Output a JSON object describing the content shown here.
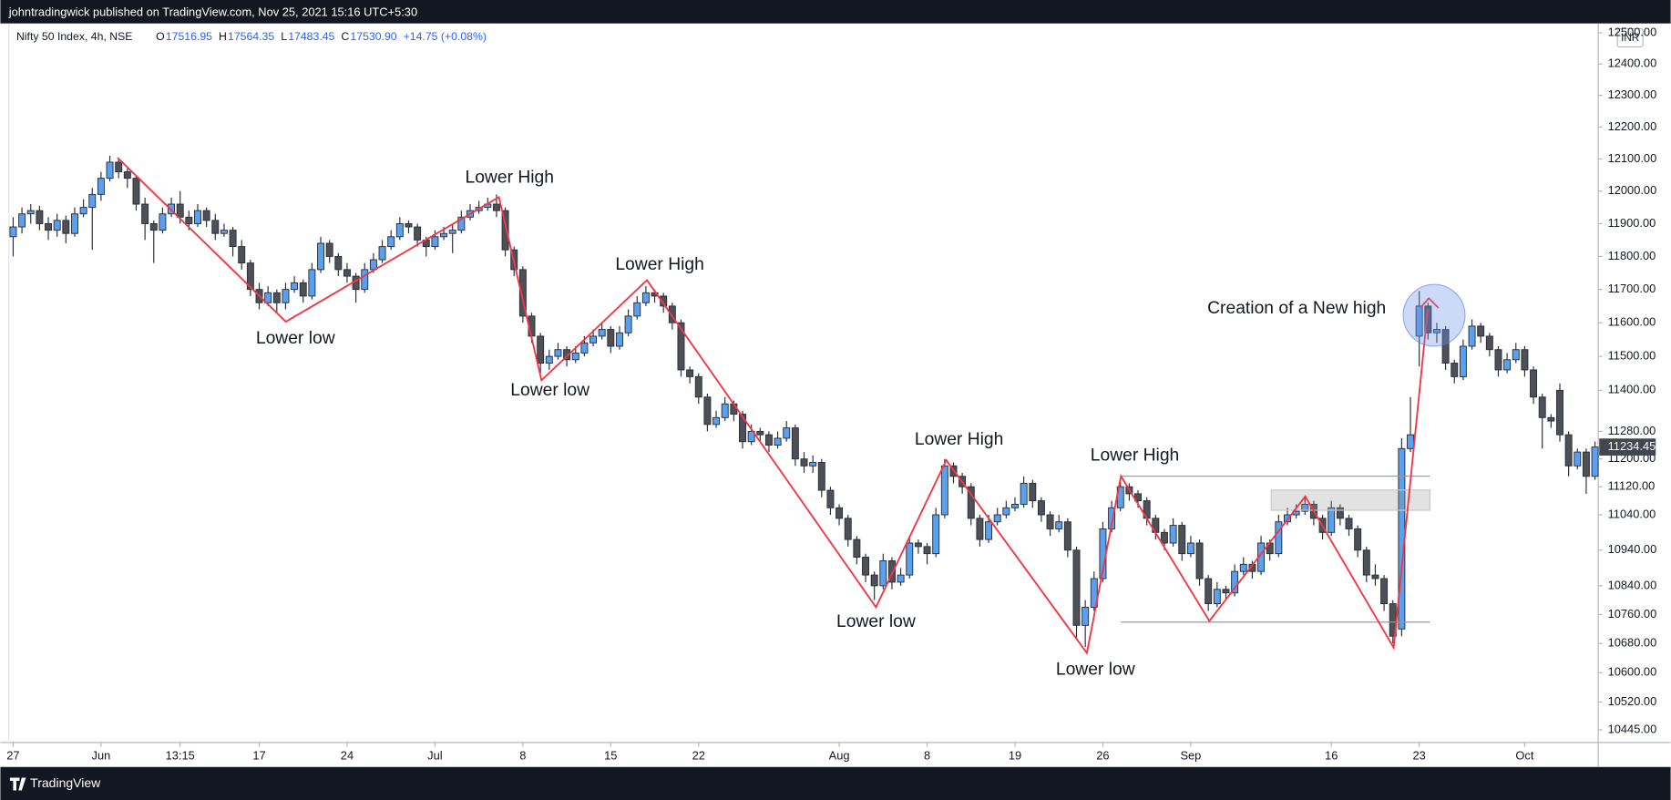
{
  "header": "johntradingwick published on TradingView.com, Nov 25, 2021 15:16 UTC+5:30",
  "legend": {
    "symbol": "Nifty 50 Index, 4h, NSE",
    "items": [
      {
        "key": "O",
        "value": "17516.95"
      },
      {
        "key": "H",
        "value": "17564.35"
      },
      {
        "key": "L",
        "value": "17483.45"
      },
      {
        "key": "C",
        "value": "17530.90"
      }
    ],
    "change": "+14.75 (+0.08%)"
  },
  "currency": "INR",
  "footer": "TradingView",
  "annotations": [
    "Lower High",
    "Lower low",
    "Lower High",
    "Lower low",
    "Lower High",
    "Lower low",
    "Lower High",
    "Lower low",
    "Creation of a New high"
  ],
  "chart_data": {
    "type": "candlestick",
    "log": true,
    "up_color": "#5aa0ee",
    "down_color": "#4e5058",
    "ylim": [
      10411,
      12530
    ],
    "yticks": [
      {
        "value": 12500,
        "label": "12500.00"
      },
      {
        "value": 12400,
        "label": "12400.00"
      },
      {
        "value": 12300,
        "label": "12300.00"
      },
      {
        "value": 12200,
        "label": "12200.00"
      },
      {
        "value": 12100,
        "label": "12100.00"
      },
      {
        "value": 12000,
        "label": "12000.00"
      },
      {
        "value": 11900,
        "label": "11900.00"
      },
      {
        "value": 11800,
        "label": "11800.00"
      },
      {
        "value": 11700,
        "label": "11700.00"
      },
      {
        "value": 11600,
        "label": "11600.00"
      },
      {
        "value": 11500,
        "label": "11500.00"
      },
      {
        "value": 11400,
        "label": "11400.00"
      },
      {
        "value": 11280,
        "label": "11280.00"
      },
      {
        "value": 11200,
        "label": "11200.00"
      },
      {
        "value": 11120,
        "label": "11120.00"
      },
      {
        "value": 11040,
        "label": "11040.00"
      },
      {
        "value": 10940,
        "label": "10940.00"
      },
      {
        "value": 10840,
        "label": "10840.00"
      },
      {
        "value": 10760,
        "label": "10760.00"
      },
      {
        "value": 10680,
        "label": "10680.00"
      },
      {
        "value": 10600,
        "label": "10600.00"
      },
      {
        "value": 10520,
        "label": "10520.00"
      },
      {
        "value": 10445,
        "label": "10445.00"
      }
    ],
    "categories": [
      "27",
      null,
      null,
      null,
      null,
      null,
      null,
      null,
      null,
      null,
      "Jun",
      null,
      null,
      null,
      null,
      null,
      null,
      null,
      null,
      "13:15",
      null,
      null,
      null,
      null,
      null,
      null,
      null,
      null,
      "17",
      null,
      null,
      null,
      null,
      null,
      null,
      null,
      null,
      null,
      "24",
      null,
      null,
      null,
      null,
      null,
      null,
      null,
      null,
      null,
      "Jul",
      null,
      null,
      null,
      null,
      null,
      null,
      null,
      null,
      null,
      "8",
      null,
      null,
      null,
      null,
      null,
      null,
      null,
      null,
      null,
      "15",
      null,
      null,
      null,
      null,
      null,
      null,
      null,
      null,
      null,
      "22",
      null,
      null,
      null,
      null,
      null,
      null,
      null,
      null,
      null,
      null,
      null,
      null,
      null,
      null,
      null,
      "Aug",
      null,
      null,
      null,
      null,
      null,
      null,
      null,
      null,
      null,
      "8",
      null,
      null,
      null,
      null,
      null,
      null,
      null,
      null,
      null,
      "19",
      null,
      null,
      null,
      null,
      null,
      null,
      null,
      null,
      null,
      "26",
      null,
      null,
      null,
      null,
      null,
      null,
      null,
      null,
      null,
      "Sep",
      null,
      null,
      null,
      null,
      null,
      null,
      null,
      null,
      null,
      null,
      null,
      null,
      null,
      null,
      null,
      "16",
      null,
      null,
      null,
      null,
      null,
      null,
      null,
      null,
      null,
      "23",
      null,
      null,
      null,
      null,
      null,
      null,
      null,
      null,
      null,
      null,
      null,
      "Oct",
      null,
      null,
      null,
      null,
      null,
      null,
      null,
      null
    ],
    "candles": [
      [
        11860,
        11920,
        11800,
        11890
      ],
      [
        11890,
        11950,
        11870,
        11930
      ],
      [
        11930,
        11960,
        11900,
        11940
      ],
      [
        11940,
        11955,
        11880,
        11900
      ],
      [
        11900,
        11920,
        11850,
        11880
      ],
      [
        11880,
        11930,
        11860,
        11910
      ],
      [
        11910,
        11925,
        11840,
        11870
      ],
      [
        11870,
        11950,
        11860,
        11930
      ],
      [
        11930,
        11975,
        11920,
        11950
      ],
      [
        11950,
        12010,
        11820,
        11990
      ],
      [
        11990,
        12060,
        11970,
        12040
      ],
      [
        12040,
        12110,
        12030,
        12090
      ],
      [
        12090,
        12100,
        12040,
        12060
      ],
      [
        12060,
        12070,
        12010,
        12040
      ],
      [
        12040,
        12050,
        11940,
        11960
      ],
      [
        11960,
        11980,
        11850,
        11900
      ],
      [
        11900,
        11910,
        11780,
        11880
      ],
      [
        11880,
        11950,
        11870,
        11930
      ],
      [
        11930,
        11980,
        11920,
        11960
      ],
      [
        11960,
        12000,
        11900,
        11920
      ],
      [
        11920,
        11940,
        11880,
        11900
      ],
      [
        11900,
        11960,
        11890,
        11940
      ],
      [
        11940,
        11950,
        11890,
        11910
      ],
      [
        11910,
        11930,
        11850,
        11870
      ],
      [
        11870,
        11900,
        11860,
        11880
      ],
      [
        11880,
        11890,
        11800,
        11830
      ],
      [
        11830,
        11850,
        11760,
        11780
      ],
      [
        11780,
        11790,
        11680,
        11700
      ],
      [
        11700,
        11720,
        11640,
        11660
      ],
      [
        11660,
        11710,
        11650,
        11690
      ],
      [
        11690,
        11700,
        11630,
        11660
      ],
      [
        11660,
        11720,
        11640,
        11700
      ],
      [
        11700,
        11740,
        11690,
        11720
      ],
      [
        11720,
        11730,
        11660,
        11680
      ],
      [
        11680,
        11780,
        11670,
        11760
      ],
      [
        11760,
        11860,
        11750,
        11840
      ],
      [
        11840,
        11850,
        11780,
        11800
      ],
      [
        11800,
        11810,
        11740,
        11760
      ],
      [
        11760,
        11780,
        11720,
        11740
      ],
      [
        11740,
        11750,
        11660,
        11700
      ],
      [
        11700,
        11780,
        11690,
        11760
      ],
      [
        11760,
        11810,
        11750,
        11790
      ],
      [
        11790,
        11850,
        11780,
        11830
      ],
      [
        11830,
        11880,
        11820,
        11860
      ],
      [
        11860,
        11920,
        11850,
        11900
      ],
      [
        11900,
        11910,
        11870,
        11890
      ],
      [
        11890,
        11900,
        11830,
        11850
      ],
      [
        11850,
        11860,
        11800,
        11830
      ],
      [
        11830,
        11880,
        11820,
        11860
      ],
      [
        11860,
        11890,
        11850,
        11870
      ],
      [
        11870,
        11900,
        11810,
        11880
      ],
      [
        11880,
        11940,
        11870,
        11920
      ],
      [
        11920,
        11960,
        11910,
        11940
      ],
      [
        11940,
        11970,
        11930,
        11950
      ],
      [
        11950,
        11980,
        11940,
        11960
      ],
      [
        11960,
        11990,
        11920,
        11940
      ],
      [
        11940,
        11950,
        11800,
        11820
      ],
      [
        11820,
        11830,
        11740,
        11760
      ],
      [
        11760,
        11770,
        11600,
        11620
      ],
      [
        11620,
        11630,
        11540,
        11560
      ],
      [
        11560,
        11570,
        11450,
        11480
      ],
      [
        11480,
        11520,
        11460,
        11500
      ],
      [
        11500,
        11540,
        11490,
        11520
      ],
      [
        11520,
        11530,
        11470,
        11490
      ],
      [
        11490,
        11530,
        11480,
        11510
      ],
      [
        11510,
        11560,
        11500,
        11540
      ],
      [
        11540,
        11580,
        11530,
        11560
      ],
      [
        11560,
        11600,
        11550,
        11580
      ],
      [
        11580,
        11590,
        11510,
        11530
      ],
      [
        11530,
        11590,
        11520,
        11570
      ],
      [
        11570,
        11640,
        11560,
        11620
      ],
      [
        11620,
        11680,
        11610,
        11660
      ],
      [
        11660,
        11710,
        11650,
        11690
      ],
      [
        11690,
        11700,
        11660,
        11680
      ],
      [
        11680,
        11690,
        11630,
        11650
      ],
      [
        11650,
        11660,
        11580,
        11600
      ],
      [
        11600,
        11610,
        11440,
        11460
      ],
      [
        11460,
        11470,
        11420,
        11440
      ],
      [
        11440,
        11450,
        11360,
        11380
      ],
      [
        11380,
        11390,
        11280,
        11300
      ],
      [
        11300,
        11340,
        11290,
        11320
      ],
      [
        11320,
        11380,
        11310,
        11360
      ],
      [
        11360,
        11370,
        11310,
        11330
      ],
      [
        11330,
        11340,
        11230,
        11250
      ],
      [
        11250,
        11300,
        11240,
        11280
      ],
      [
        11280,
        11290,
        11250,
        11270
      ],
      [
        11270,
        11280,
        11220,
        11240
      ],
      [
        11240,
        11280,
        11230,
        11260
      ],
      [
        11260,
        11310,
        11250,
        11290
      ],
      [
        11290,
        11300,
        11180,
        11200
      ],
      [
        11200,
        11220,
        11160,
        11180
      ],
      [
        11180,
        11210,
        11160,
        11190
      ],
      [
        11190,
        11200,
        11090,
        11110
      ],
      [
        11110,
        11120,
        11040,
        11060
      ],
      [
        11060,
        11070,
        11010,
        11030
      ],
      [
        11030,
        11040,
        10950,
        10970
      ],
      [
        10970,
        10980,
        10900,
        10920
      ],
      [
        10920,
        10930,
        10850,
        10870
      ],
      [
        10870,
        10880,
        10800,
        10840
      ],
      [
        10840,
        10930,
        10830,
        10910
      ],
      [
        10910,
        10920,
        10830,
        10850
      ],
      [
        10850,
        10890,
        10840,
        10870
      ],
      [
        10870,
        10980,
        10860,
        10960
      ],
      [
        10960,
        10970,
        10930,
        10950
      ],
      [
        10950,
        10960,
        10900,
        10930
      ],
      [
        10930,
        11060,
        10920,
        11040
      ],
      [
        11040,
        11200,
        11030,
        11180
      ],
      [
        11180,
        11190,
        11130,
        11150
      ],
      [
        11150,
        11160,
        11100,
        11120
      ],
      [
        11120,
        11130,
        11010,
        11030
      ],
      [
        11030,
        11040,
        10950,
        10970
      ],
      [
        10970,
        11040,
        10960,
        11020
      ],
      [
        11020,
        11060,
        11010,
        11040
      ],
      [
        11040,
        11080,
        11030,
        11060
      ],
      [
        11060,
        11090,
        11050,
        11070
      ],
      [
        11070,
        11150,
        11060,
        11130
      ],
      [
        11130,
        11140,
        11060,
        11080
      ],
      [
        11080,
        11090,
        11020,
        11040
      ],
      [
        11040,
        11050,
        10980,
        11000
      ],
      [
        11000,
        11040,
        10990,
        11020
      ],
      [
        11020,
        11030,
        10920,
        10940
      ],
      [
        10940,
        10950,
        10690,
        10730
      ],
      [
        10730,
        10800,
        10670,
        10780
      ],
      [
        10780,
        10880,
        10770,
        10860
      ],
      [
        10860,
        11020,
        10850,
        11000
      ],
      [
        11000,
        11080,
        10990,
        11060
      ],
      [
        11060,
        11140,
        11050,
        11120
      ],
      [
        11120,
        11130,
        11080,
        11100
      ],
      [
        11100,
        11110,
        11060,
        11080
      ],
      [
        11080,
        11090,
        11010,
        11030
      ],
      [
        11030,
        11040,
        10970,
        10990
      ],
      [
        10990,
        11000,
        10940,
        10960
      ],
      [
        10960,
        11030,
        10950,
        11010
      ],
      [
        11010,
        11020,
        10910,
        10930
      ],
      [
        10930,
        10980,
        10920,
        10960
      ],
      [
        10960,
        10970,
        10840,
        10860
      ],
      [
        10860,
        10870,
        10770,
        10790
      ],
      [
        10790,
        10850,
        10780,
        10830
      ],
      [
        10830,
        10840,
        10800,
        10820
      ],
      [
        10820,
        10900,
        10810,
        10880
      ],
      [
        10880,
        10920,
        10870,
        10900
      ],
      [
        10900,
        10910,
        10860,
        10880
      ],
      [
        10880,
        10980,
        10870,
        10960
      ],
      [
        10960,
        10970,
        10910,
        10930
      ],
      [
        10930,
        11040,
        10920,
        11020
      ],
      [
        11020,
        11060,
        11010,
        11040
      ],
      [
        11040,
        11070,
        11030,
        11050
      ],
      [
        11050,
        11090,
        11040,
        11070
      ],
      [
        11070,
        11080,
        11010,
        11030
      ],
      [
        11030,
        11040,
        10970,
        10990
      ],
      [
        10990,
        11080,
        10980,
        11060
      ],
      [
        11060,
        11070,
        11010,
        11030
      ],
      [
        11030,
        11040,
        10980,
        11000
      ],
      [
        11000,
        11010,
        10920,
        10940
      ],
      [
        10940,
        10950,
        10850,
        10870
      ],
      [
        10870,
        10900,
        10840,
        10860
      ],
      [
        10860,
        10870,
        10770,
        10790
      ],
      [
        10790,
        10800,
        10680,
        10700
      ],
      [
        10720,
        11260,
        10700,
        11230
      ],
      [
        11230,
        11380,
        11220,
        11270
      ],
      [
        11560,
        11695,
        11470,
        11650
      ],
      [
        11650,
        11660,
        11550,
        11570
      ],
      [
        11570,
        11600,
        11540,
        11580
      ],
      [
        11580,
        11590,
        11460,
        11480
      ],
      [
        11480,
        11490,
        11420,
        11440
      ],
      [
        11440,
        11550,
        11430,
        11530
      ],
      [
        11530,
        11610,
        11520,
        11590
      ],
      [
        11590,
        11600,
        11540,
        11560
      ],
      [
        11560,
        11570,
        11500,
        11520
      ],
      [
        11520,
        11530,
        11440,
        11460
      ],
      [
        11460,
        11510,
        11450,
        11490
      ],
      [
        11490,
        11540,
        11480,
        11520
      ],
      [
        11520,
        11530,
        11440,
        11460
      ],
      [
        11460,
        11470,
        11360,
        11380
      ],
      [
        11380,
        11390,
        11230,
        11320
      ],
      [
        11320,
        11330,
        11290,
        11310
      ],
      [
        11400,
        11420,
        11250,
        11270
      ],
      [
        11270,
        11280,
        11150,
        11180
      ],
      [
        11180,
        11230,
        11170,
        11220
      ],
      [
        11220,
        11230,
        11100,
        11150
      ],
      [
        11150,
        11250,
        11140,
        11234.45
      ]
    ]
  }
}
